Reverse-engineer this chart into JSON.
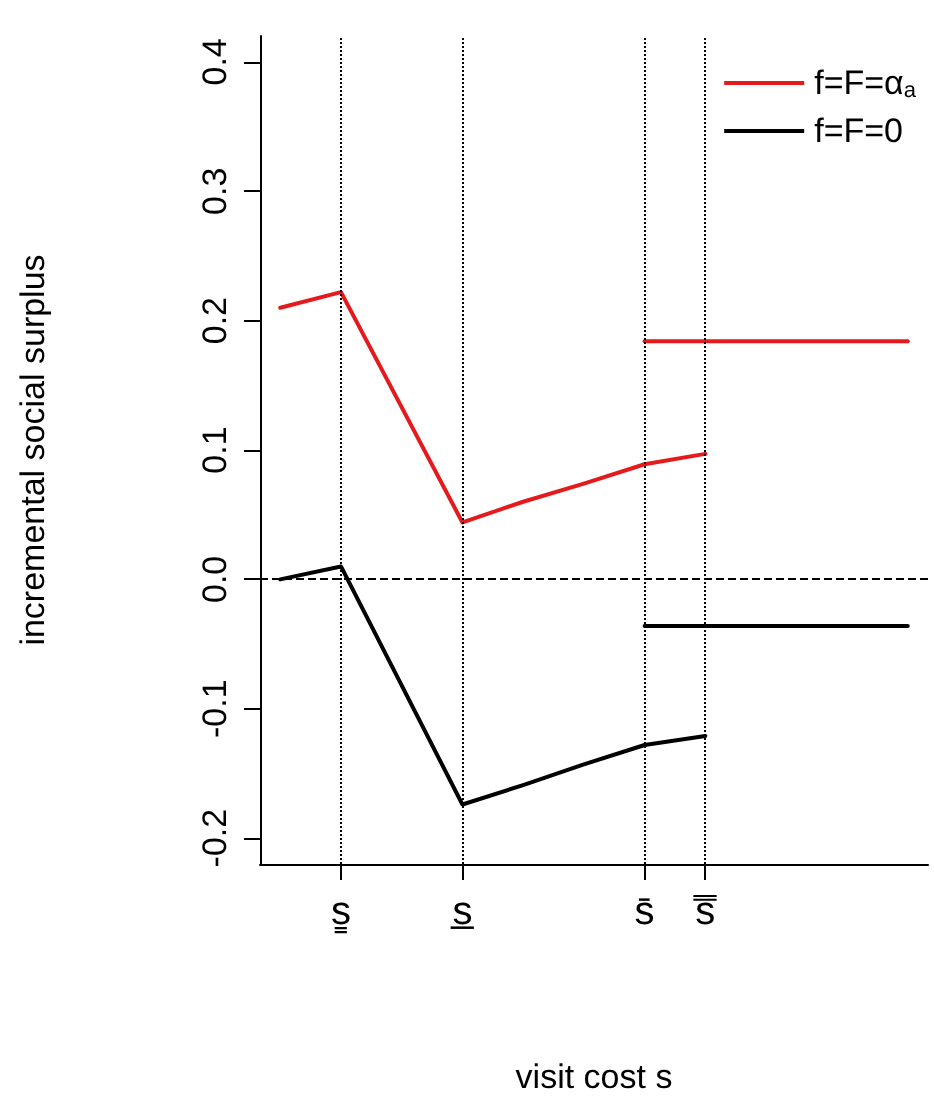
{
  "chart_data": {
    "type": "line",
    "xlabel": "visit cost s",
    "ylabel": "incremental social surplus",
    "categories": [
      null,
      null,
      null,
      null,
      "s̳",
      null,
      null,
      null,
      null,
      null,
      "s̲",
      null,
      null,
      null,
      null,
      null,
      null,
      null,
      null,
      "s̄",
      null,
      null,
      "s̿",
      null,
      null,
      null,
      null,
      null,
      null,
      null,
      null,
      null,
      null,
      null
    ],
    "ylim": [
      -0.22,
      0.42
    ],
    "yticks": [
      -0.2,
      -0.1,
      {
        "value": 0,
        "label": "0.0"
      },
      0.1,
      0.2,
      0.3,
      0.4
    ],
    "series": [
      {
        "name": "f=F=α$_{a}$",
        "color": "#e41a1c",
        "values": [
          null,
          0.21,
          null,
          null,
          0.222,
          null,
          null,
          null,
          null,
          null,
          0.044,
          null,
          null,
          0.06,
          null,
          null,
          0.074,
          null,
          null,
          0.089,
          null,
          null,
          0.097,
          null,
          null,
          null,
          null,
          null,
          null,
          null,
          null,
          null,
          null,
          null
        ]
      },
      {
        "color": "#e41a1c",
        "values": [
          null,
          null,
          null,
          null,
          null,
          null,
          null,
          null,
          null,
          null,
          null,
          null,
          null,
          null,
          null,
          null,
          null,
          null,
          null,
          0.184,
          null,
          null,
          null,
          null,
          null,
          null,
          null,
          null,
          null,
          null,
          null,
          null,
          0.184,
          null
        ]
      },
      {
        "name": "f=F=0",
        "color": "#000000",
        "values": [
          null,
          0.0,
          null,
          null,
          0.01,
          null,
          null,
          null,
          null,
          null,
          -0.174,
          null,
          null,
          -0.159,
          null,
          null,
          -0.143,
          null,
          null,
          -0.128,
          null,
          null,
          -0.121,
          null,
          null,
          null,
          null,
          null,
          null,
          null,
          null,
          null,
          null,
          null
        ]
      },
      {
        "color": "#000000",
        "values": [
          null,
          null,
          null,
          null,
          null,
          null,
          null,
          null,
          null,
          null,
          null,
          null,
          null,
          null,
          null,
          null,
          null,
          null,
          null,
          -0.036,
          null,
          null,
          null,
          null,
          null,
          null,
          null,
          null,
          null,
          null,
          null,
          null,
          -0.036,
          null
        ]
      }
    ],
    "ref_lines": [
      {
        "axis": "y",
        "value": 0,
        "label": null,
        "color": "#000000",
        "line_style": "dashed"
      },
      {
        "axis": "x",
        "value": "s̳",
        "label": null,
        "color": "#000000",
        "line_style": "dotted"
      },
      {
        "axis": "x",
        "value": "s̲",
        "label": null,
        "color": "#000000",
        "line_style": "dotted"
      },
      {
        "axis": "x",
        "value": "s̄",
        "label": null,
        "color": "#000000",
        "line_style": "dotted"
      },
      {
        "axis": "x",
        "value": "s̿",
        "label": null,
        "color": "#000000",
        "line_style": "dotted"
      }
    ],
    "legend": "top right",
    "grid": false,
    "marker": "none",
    "line_style": "solid"
  }
}
